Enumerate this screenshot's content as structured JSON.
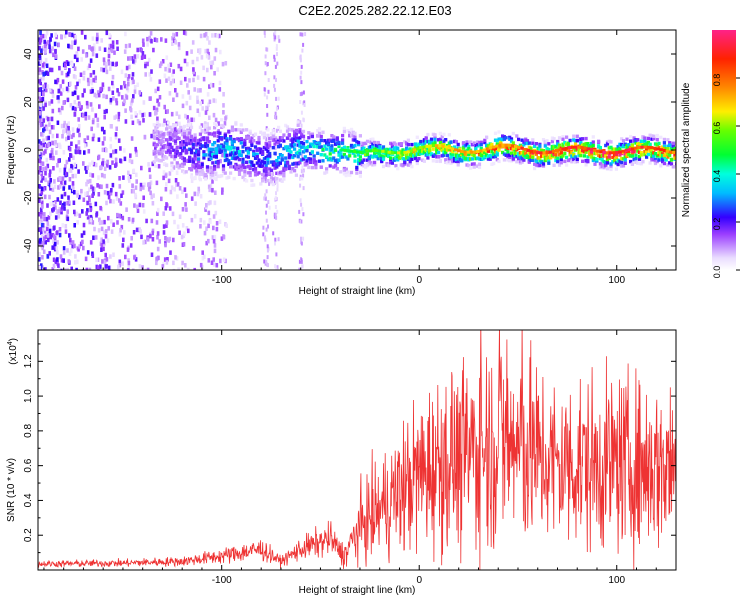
{
  "title": "C2E2.2025.282.22.12.E03",
  "chart_data": [
    {
      "type": "heatmap",
      "name": "spectrogram",
      "xlabel": "Height of straight line (km)",
      "ylabel": "Frequency (Hz)",
      "xlim": [
        -193,
        130
      ],
      "ylim": [
        -50,
        50
      ],
      "xticks": [
        -100,
        0,
        100
      ],
      "xtick_labels": [
        "-100",
        "0",
        "100"
      ],
      "yticks": [
        -40,
        -20,
        0,
        20,
        40
      ],
      "ytick_labels": [
        "-40",
        "-20",
        "0",
        "20",
        "40"
      ],
      "colorbar": {
        "label": "Normalized spectral amplitude",
        "range": [
          0,
          1
        ],
        "ticks": [
          0.0,
          0.2,
          0.4,
          0.6,
          0.8
        ],
        "tick_labels": [
          "0.0",
          "0.2",
          "0.4",
          "0.6",
          "0.8"
        ]
      },
      "ridge": {
        "description_points_x": [
          -130,
          -100,
          -80,
          -60,
          -40,
          -30,
          -20,
          0,
          20,
          40,
          60,
          80,
          100,
          130
        ],
        "center_freq": [
          2,
          0,
          -2,
          0,
          1,
          -2,
          -1,
          1,
          0,
          1,
          0,
          0,
          0,
          0
        ],
        "amplitude": [
          0.15,
          0.4,
          0.3,
          0.4,
          0.5,
          0.55,
          0.6,
          0.7,
          0.75,
          0.85,
          0.9,
          0.95,
          1.0,
          0.85
        ]
      }
    },
    {
      "type": "line",
      "name": "snr",
      "xlabel": "Height of straight line (km)",
      "ylabel": "SNR (10 * v/v)",
      "y_multiplier_label": "(x10",
      "y_multiplier_exp": "4",
      "y_multiplier_close": ")",
      "xlim": [
        -193,
        130
      ],
      "ylim": [
        0,
        1.38
      ],
      "xticks": [
        -100,
        0,
        100
      ],
      "xtick_labels": [
        "-100",
        "0",
        "100"
      ],
      "yticks": [
        0.2,
        0.4,
        0.6,
        0.8,
        1.0,
        1.2
      ],
      "ytick_labels": [
        "0.2",
        "0.4",
        "0.6",
        "0.8",
        "1.0",
        "1.2"
      ],
      "series": [
        {
          "name": "SNR",
          "color": "#ee3333",
          "envelope_x": [
            -193,
            -150,
            -120,
            -100,
            -80,
            -70,
            -60,
            -45,
            -38,
            -30,
            -20,
            -10,
            0,
            10,
            20,
            30,
            40,
            50,
            60,
            70,
            80,
            90,
            100,
            110,
            120,
            130
          ],
          "envelope_y": [
            0.035,
            0.04,
            0.05,
            0.08,
            0.12,
            0.05,
            0.12,
            0.18,
            0.08,
            0.25,
            0.35,
            0.45,
            0.55,
            0.62,
            0.65,
            0.7,
            0.75,
            0.7,
            0.66,
            0.6,
            0.62,
            0.6,
            0.62,
            0.6,
            0.6,
            0.62
          ]
        }
      ]
    }
  ]
}
